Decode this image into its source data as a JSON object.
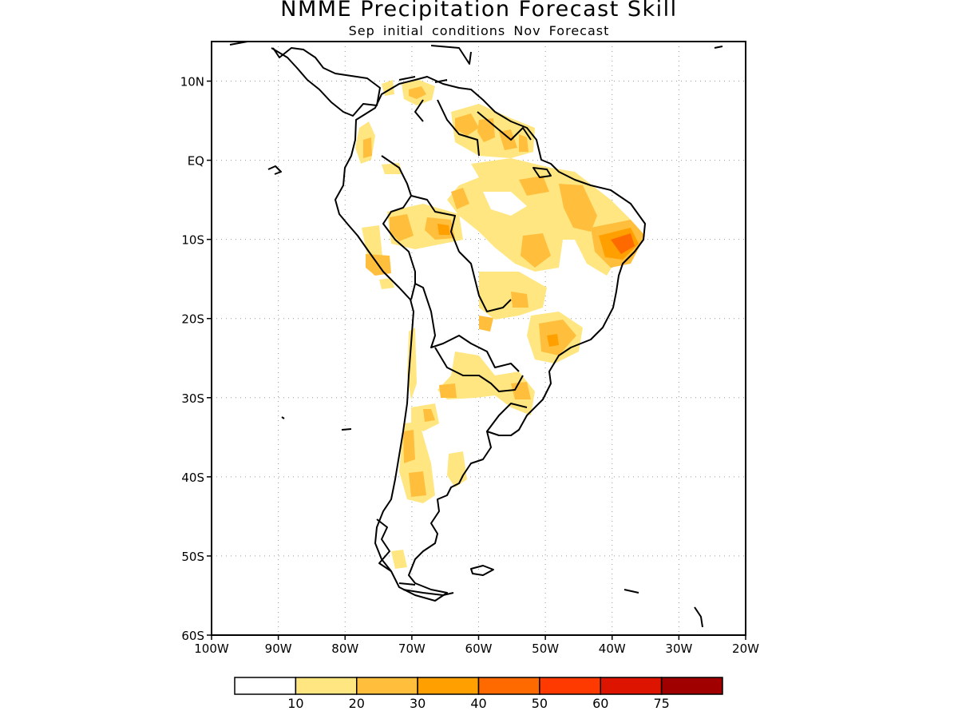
{
  "title": "NMME Precipitation Forecast Skill",
  "subtitle": "Sep initial conditions  Nov Forecast",
  "map": {
    "lon_range": [
      -100,
      -20
    ],
    "lat_range": [
      -60,
      15
    ],
    "lat_ticks": [
      {
        "value": 10,
        "label": "10N"
      },
      {
        "value": 0,
        "label": "EQ"
      },
      {
        "value": -10,
        "label": "10S"
      },
      {
        "value": -20,
        "label": "20S"
      },
      {
        "value": -30,
        "label": "30S"
      },
      {
        "value": -40,
        "label": "40S"
      },
      {
        "value": -50,
        "label": "50S"
      },
      {
        "value": -60,
        "label": "60S"
      }
    ],
    "lon_ticks": [
      {
        "value": -100,
        "label": "100W"
      },
      {
        "value": -90,
        "label": "90W"
      },
      {
        "value": -80,
        "label": "80W"
      },
      {
        "value": -70,
        "label": "70W"
      },
      {
        "value": -60,
        "label": "60W"
      },
      {
        "value": -50,
        "label": "50W"
      },
      {
        "value": -40,
        "label": "40W"
      },
      {
        "value": -30,
        "label": "30W"
      },
      {
        "value": -20,
        "label": "20W"
      }
    ],
    "grid": true
  },
  "colorbar": {
    "colors": [
      "#ffffff",
      "#ffe680",
      "#ffbe3c",
      "#ffa000",
      "#ff6a00",
      "#ff3a00",
      "#dc1400",
      "#a00000"
    ],
    "labels": [
      "10",
      "20",
      "30",
      "40",
      "50",
      "60",
      "75"
    ]
  }
}
